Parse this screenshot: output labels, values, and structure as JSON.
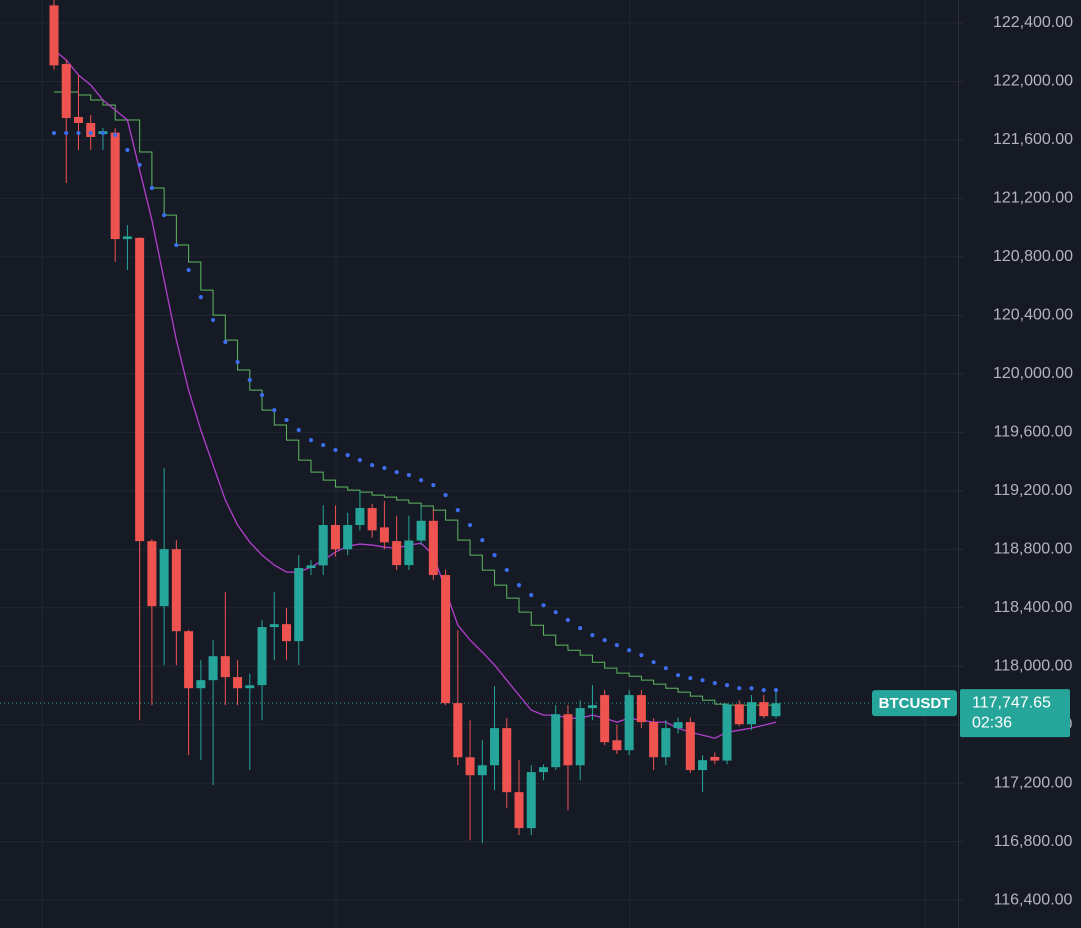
{
  "chart_data": {
    "type": "candlestick",
    "symbol": "BTCUSDT",
    "countdown": "02:36",
    "last_price": {
      "value": 117747.65,
      "label": "117,747.65"
    },
    "colors": {
      "up": "#26a69a",
      "down": "#ef5350"
    },
    "open": [
      122520,
      122119,
      121757,
      121716,
      121640,
      121650,
      120922,
      120930,
      118856,
      118411,
      118801,
      118240,
      117850,
      117905,
      118069,
      117926,
      117850,
      117871,
      118268,
      118288,
      118172,
      118672,
      118690,
      118966,
      118800,
      118966,
      119082,
      118950,
      118856,
      118692,
      118860,
      118995,
      118624,
      117748,
      117378,
      117255,
      117323,
      117577,
      117139,
      116893,
      117276,
      117310,
      117672,
      117323,
      117714,
      117803,
      117494,
      117426,
      117803,
      117618,
      117378,
      117577,
      117618,
      117290,
      117380,
      117355,
      117740,
      117604,
      117755,
      117659
    ],
    "high": [
      122557,
      122147,
      122044,
      121770,
      121682,
      121680,
      121018,
      120935,
      118870,
      119356,
      118862,
      118250,
      118042,
      118179,
      118507,
      118042,
      117950,
      118316,
      118507,
      118400,
      118760,
      118726,
      119102,
      119100,
      119050,
      119205,
      119110,
      119130,
      119030,
      119030,
      119100,
      119070,
      118660,
      118247,
      117631,
      117494,
      117864,
      117645,
      117358,
      117323,
      117330,
      117734,
      117734,
      117768,
      117871,
      117837,
      117600,
      117837,
      117837,
      117645,
      117631,
      117650,
      117650,
      117392,
      117410,
      117748,
      117768,
      117803,
      117803,
      117837
    ],
    "low": [
      122080,
      121305,
      121531,
      121531,
      121531,
      120765,
      120710,
      117631,
      117734,
      118008,
      118008,
      117392,
      117358,
      117187,
      117734,
      117734,
      117290,
      117631,
      118042,
      118042,
      118008,
      118624,
      118624,
      118750,
      118760,
      118930,
      118880,
      118800,
      118658,
      118658,
      118830,
      118590,
      117734,
      117323,
      116810,
      116790,
      117152,
      117030,
      116845,
      116845,
      117220,
      117290,
      117016,
      117220,
      117631,
      117460,
      117400,
      117392,
      117577,
      117290,
      117323,
      117540,
      117270,
      117139,
      117330,
      117330,
      117590,
      117563,
      117645,
      117645
    ],
    "close": [
      122110,
      121750,
      121716,
      121620,
      121660,
      120922,
      120940,
      118856,
      118411,
      118801,
      118240,
      117850,
      117905,
      118069,
      117926,
      117850,
      117870,
      118268,
      118288,
      118172,
      118672,
      118690,
      118966,
      118800,
      118966,
      119082,
      118930,
      118848,
      118692,
      118860,
      118995,
      118624,
      117748,
      117378,
      117255,
      117323,
      117577,
      117139,
      116893,
      117276,
      117310,
      117672,
      117323,
      117714,
      117734,
      117481,
      117426,
      117803,
      117618,
      117378,
      117577,
      117618,
      117290,
      117358,
      117355,
      117740,
      117604,
      117755,
      117659,
      117747.65
    ],
    "parabolic_sar": {
      "color": "#3d6ef0",
      "values": [
        121647,
        121647,
        121647,
        121647,
        121647,
        121634,
        121531,
        121429,
        121271,
        121086,
        120881,
        120710,
        120525,
        120368,
        120218,
        120081,
        119958,
        119855,
        119752,
        119684,
        119616,
        119547,
        119513,
        119479,
        119444,
        119410,
        119376,
        119356,
        119328,
        119308,
        119273,
        119239,
        119171,
        119068,
        118966,
        118863,
        118760,
        118658,
        118555,
        118487,
        118418,
        118370,
        118316,
        118261,
        118213,
        118179,
        118145,
        118110,
        118076,
        118028,
        117987,
        117939,
        117919,
        117905,
        117885,
        117871,
        117850,
        117850,
        117837,
        117837
      ]
    },
    "step_line": {
      "color": "#5fb85f",
      "values": [
        121928,
        121928,
        121907,
        121873,
        121839,
        121736,
        121736,
        121517,
        121271,
        121086,
        120881,
        120765,
        120573,
        120402,
        120231,
        120026,
        119889,
        119752,
        119650,
        119547,
        119410,
        119328,
        119273,
        119226,
        119205,
        119191,
        119171,
        119157,
        119137,
        119116,
        119096,
        119068,
        119000,
        118863,
        118760,
        118658,
        118555,
        118466,
        118370,
        118281,
        118213,
        118145,
        118110,
        118076,
        118028,
        117987,
        117953,
        117932,
        117905,
        117878,
        117850,
        117823,
        117796,
        117768,
        117741,
        117734,
        117734,
        117734,
        117734,
        117734
      ]
    },
    "moving_average": {
      "color": "#b13fcc",
      "values": [
        122215,
        122147,
        122044,
        121976,
        121873,
        121805,
        121736,
        121394,
        121052,
        120642,
        120231,
        119889,
        119616,
        119376,
        119137,
        118966,
        118849,
        118760,
        118692,
        118644,
        118644,
        118678,
        118726,
        118781,
        118822,
        118836,
        118829,
        118815,
        118808,
        118829,
        118842,
        118760,
        118521,
        118281,
        118179,
        118097,
        118008,
        117905,
        117802,
        117700,
        117666,
        117666,
        117645,
        117645,
        117666,
        117645,
        117618,
        117645,
        117631,
        117618,
        117618,
        117577,
        117549,
        117529,
        117508,
        117549,
        117563,
        117577,
        117597,
        117618
      ]
    },
    "ylim": [
      116210,
      122557
    ],
    "yticks": [
      {
        "value": 116400,
        "label": "116,400.00"
      },
      {
        "value": 116800,
        "label": "116,800.00"
      },
      {
        "value": 117200,
        "label": "117,200.00"
      },
      {
        "value": 117600,
        "label": "117,600.00"
      },
      {
        "value": 118000,
        "label": "118,000.00"
      },
      {
        "value": 118400,
        "label": "118,400.00"
      },
      {
        "value": 118800,
        "label": "118,800.00"
      },
      {
        "value": 119200,
        "label": "119,200.00"
      },
      {
        "value": 119600,
        "label": "119,600.00"
      },
      {
        "value": 120000,
        "label": "120,000.00"
      },
      {
        "value": 120400,
        "label": "120,400.00"
      },
      {
        "value": 120800,
        "label": "120,800.00"
      },
      {
        "value": 121200,
        "label": "121,200.00"
      },
      {
        "value": 121600,
        "label": "121,600.00"
      },
      {
        "value": 122000,
        "label": "122,000.00"
      },
      {
        "value": 122400,
        "label": "122,400.00"
      }
    ],
    "grid": true
  }
}
